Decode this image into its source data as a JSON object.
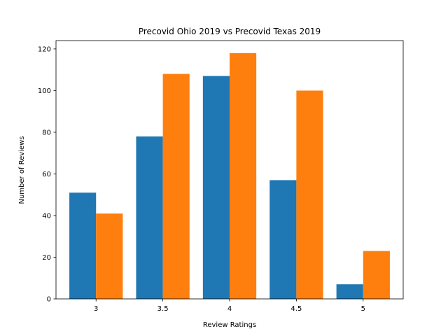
{
  "chart_data": {
    "type": "bar",
    "title": "Precovid Ohio 2019 vs Precovid Texas 2019",
    "xlabel": "Review Ratings",
    "ylabel": "Number of Reviews",
    "categories": [
      "3",
      "3.5",
      "4",
      "4.5",
      "5"
    ],
    "series": [
      {
        "values": [
          51,
          78,
          107,
          57,
          7
        ],
        "color": "#1f77b4"
      },
      {
        "values": [
          41,
          108,
          118,
          100,
          23
        ],
        "color": "#ff7f0e"
      }
    ],
    "ylim": [
      0,
      124
    ],
    "yticks": [
      0,
      20,
      40,
      60,
      80,
      100,
      120
    ],
    "grid": false,
    "legend": "none"
  }
}
